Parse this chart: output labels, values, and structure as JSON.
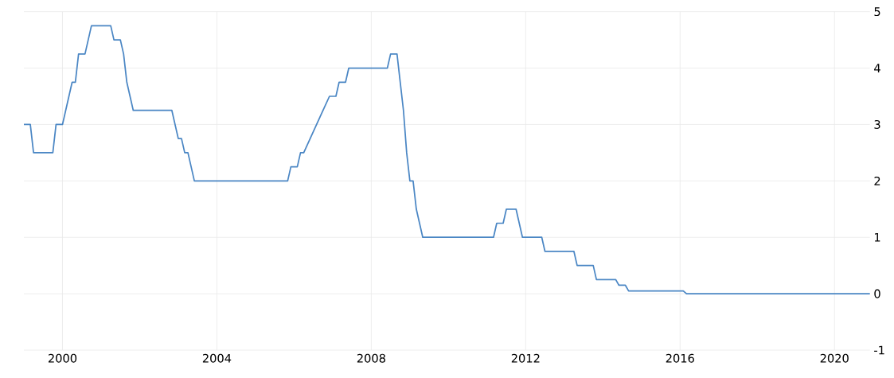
{
  "chart_data": {
    "type": "line",
    "x": [
      "1999-01",
      "1999-03",
      "1999-04",
      "1999-10",
      "1999-11",
      "2000-01",
      "2000-02",
      "2000-03",
      "2000-04",
      "2000-05",
      "2000-06",
      "2000-08",
      "2000-09",
      "2000-10",
      "2001-04",
      "2001-05",
      "2001-07",
      "2001-08",
      "2001-09",
      "2001-10",
      "2001-11",
      "2002-11",
      "2002-12",
      "2003-01",
      "2003-02",
      "2003-03",
      "2003-04",
      "2003-05",
      "2003-06",
      "2005-11",
      "2005-12",
      "2006-02",
      "2006-03",
      "2006-04",
      "2006-06",
      "2006-08",
      "2006-10",
      "2006-12",
      "2007-02",
      "2007-03",
      "2007-05",
      "2007-06",
      "2008-06",
      "2008-07",
      "2008-09",
      "2008-10",
      "2008-11",
      "2008-12",
      "2009-01",
      "2009-02",
      "2009-03",
      "2009-04",
      "2009-05",
      "2011-03",
      "2011-04",
      "2011-06",
      "2011-07",
      "2011-10",
      "2011-11",
      "2011-12",
      "2012-06",
      "2012-07",
      "2013-04",
      "2013-05",
      "2013-10",
      "2013-11",
      "2014-05",
      "2014-06",
      "2014-08",
      "2014-09",
      "2016-02",
      "2016-03",
      "2020-12"
    ],
    "values": [
      3.0,
      3.0,
      2.5,
      2.5,
      3.0,
      3.0,
      3.25,
      3.5,
      3.75,
      3.75,
      4.25,
      4.25,
      4.5,
      4.75,
      4.75,
      4.5,
      4.5,
      4.25,
      3.75,
      3.5,
      3.25,
      3.25,
      3.0,
      2.75,
      2.75,
      2.5,
      2.5,
      2.25,
      2.0,
      2.0,
      2.25,
      2.25,
      2.5,
      2.5,
      2.75,
      3.0,
      3.25,
      3.5,
      3.5,
      3.75,
      3.75,
      4.0,
      4.0,
      4.25,
      4.25,
      3.75,
      3.25,
      2.5,
      2.0,
      2.0,
      1.5,
      1.25,
      1.0,
      1.0,
      1.25,
      1.25,
      1.5,
      1.5,
      1.25,
      1.0,
      1.0,
      0.75,
      0.75,
      0.5,
      0.5,
      0.25,
      0.25,
      0.15,
      0.15,
      0.05,
      0.05,
      0.0,
      0.0
    ],
    "color": "#4a86c4",
    "xlim": [
      "1999-01",
      "2020-12"
    ],
    "xticks": [
      "2000",
      "2004",
      "2008",
      "2012",
      "2016",
      "2020"
    ],
    "ylim": [
      -1,
      5
    ],
    "yticks": [
      -1,
      0,
      1,
      2,
      3,
      4,
      5
    ],
    "grid": true
  }
}
